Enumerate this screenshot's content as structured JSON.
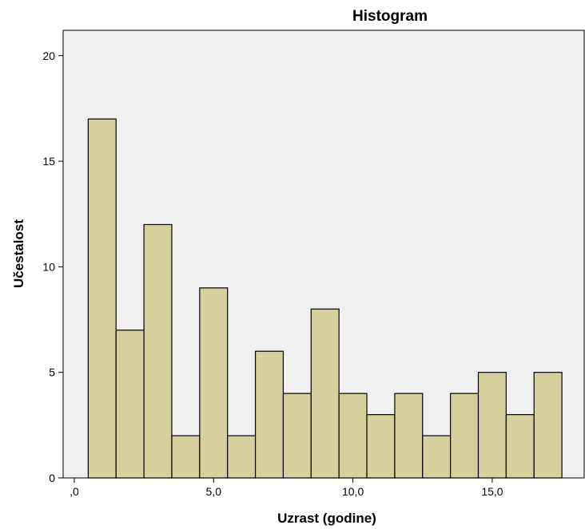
{
  "chart_data": {
    "type": "bar",
    "title": "Histogram",
    "xlabel": "Uzrast (godine)",
    "ylabel": "Učestalost",
    "bin_width": 1,
    "bins": [
      {
        "start": 0.5,
        "end": 1.5,
        "count": 17
      },
      {
        "start": 1.5,
        "end": 2.5,
        "count": 7
      },
      {
        "start": 2.5,
        "end": 3.5,
        "count": 12
      },
      {
        "start": 3.5,
        "end": 4.5,
        "count": 2
      },
      {
        "start": 4.5,
        "end": 5.5,
        "count": 9
      },
      {
        "start": 5.5,
        "end": 6.5,
        "count": 2
      },
      {
        "start": 6.5,
        "end": 7.5,
        "count": 6
      },
      {
        "start": 7.5,
        "end": 8.5,
        "count": 4
      },
      {
        "start": 8.5,
        "end": 9.5,
        "count": 8
      },
      {
        "start": 9.5,
        "end": 10.5,
        "count": 4
      },
      {
        "start": 10.5,
        "end": 11.5,
        "count": 3
      },
      {
        "start": 11.5,
        "end": 12.5,
        "count": 4
      },
      {
        "start": 12.5,
        "end": 13.5,
        "count": 2
      },
      {
        "start": 13.5,
        "end": 14.5,
        "count": 4
      },
      {
        "start": 14.5,
        "end": 15.5,
        "count": 5
      },
      {
        "start": 15.5,
        "end": 16.5,
        "count": 3
      },
      {
        "start": 16.5,
        "end": 17.5,
        "count": 5
      }
    ],
    "xlim": [
      -0.4,
      18.3
    ],
    "ylim": [
      0,
      21.2
    ],
    "x_ticks": [
      {
        "value": 0,
        "label": ",0"
      },
      {
        "value": 5,
        "label": "5,0"
      },
      {
        "value": 10,
        "label": "10,0"
      },
      {
        "value": 15,
        "label": "15,0"
      }
    ],
    "y_ticks": [
      {
        "value": 0,
        "label": "0"
      },
      {
        "value": 5,
        "label": "5"
      },
      {
        "value": 10,
        "label": "10"
      },
      {
        "value": 15,
        "label": "15"
      },
      {
        "value": 20,
        "label": "20"
      }
    ],
    "grid": false,
    "colors": {
      "bar_fill": "#d6d09c",
      "bar_stroke": "#000000",
      "plot_background": "#f0f0f0"
    }
  }
}
